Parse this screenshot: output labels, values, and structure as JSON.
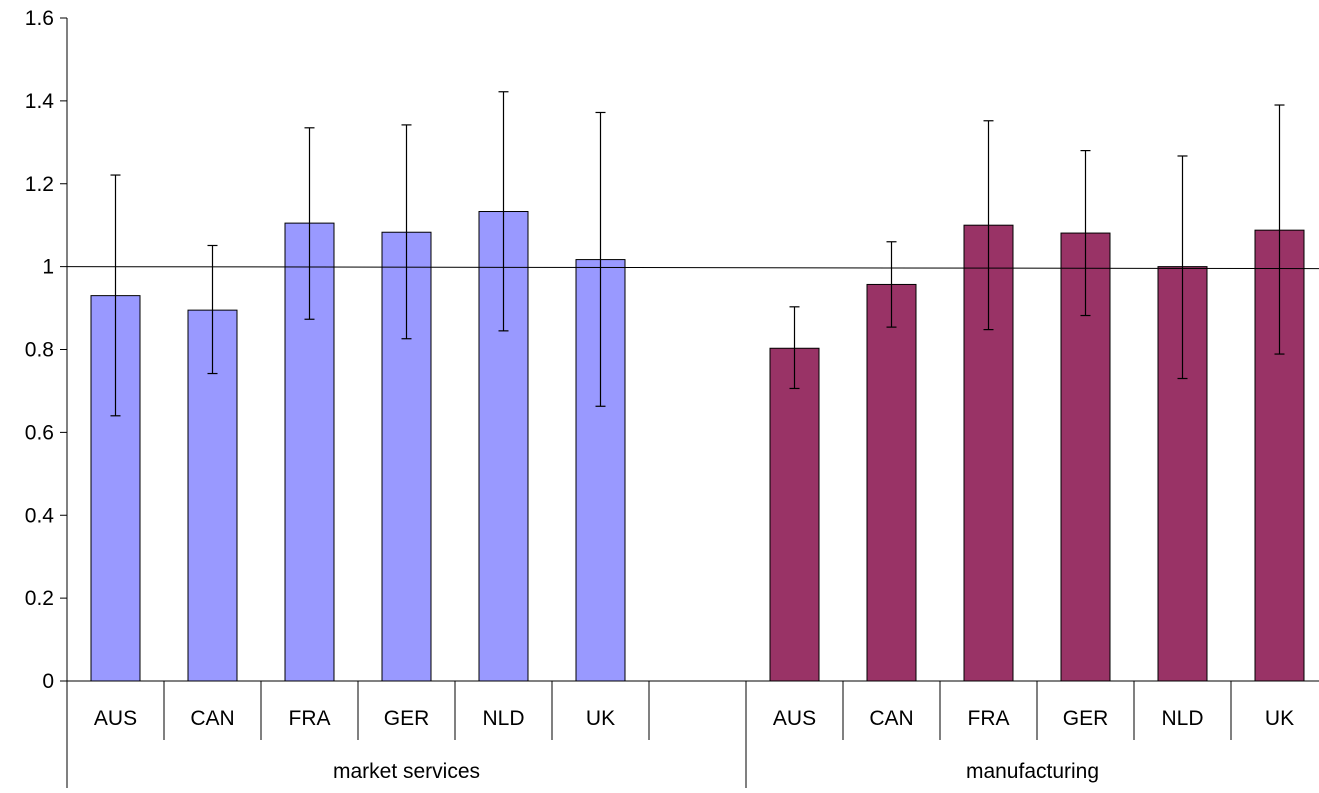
{
  "chart_data": {
    "type": "bar",
    "title": "",
    "xlabel": "",
    "ylabel": "",
    "ylim": [
      0,
      1.6
    ],
    "yticks": [
      "0",
      "0.2",
      "0.4",
      "0.6",
      "0.8",
      "1",
      "1.2",
      "1.4",
      "1.6"
    ],
    "reference_line": 1,
    "grid": false,
    "legend": "none",
    "groups": [
      {
        "label": "market services",
        "color": "#9999ff",
        "categories": [
          "AUS",
          "CAN",
          "FRA",
          "GER",
          "NLD",
          "UK",
          ""
        ],
        "values": [
          0.93,
          0.895,
          1.105,
          1.083,
          1.133,
          1.017,
          null
        ],
        "error_low": [
          0.64,
          0.742,
          0.873,
          0.826,
          0.845,
          0.663,
          null
        ],
        "error_high": [
          1.221,
          1.051,
          1.335,
          1.342,
          1.422,
          1.372,
          null
        ]
      },
      {
        "label": "manufacturing",
        "color": "#993366",
        "categories": [
          "AUS",
          "CAN",
          "FRA",
          "GER",
          "NLD",
          "UK"
        ],
        "values": [
          0.803,
          0.957,
          1.1,
          1.081,
          1.0,
          1.088
        ],
        "error_low": [
          0.706,
          0.854,
          0.848,
          0.882,
          0.73,
          0.789
        ],
        "error_high": [
          0.903,
          1.06,
          1.352,
          1.28,
          1.267,
          1.39
        ]
      }
    ]
  }
}
